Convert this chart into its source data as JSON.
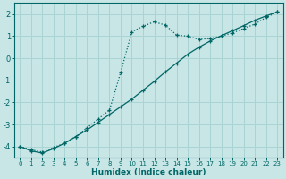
{
  "xlabel": "Humidex (Indice chaleur)",
  "bg_color": "#c8e6e6",
  "grid_color": "#aad4d4",
  "line_color": "#006666",
  "xlim": [
    -0.5,
    23.5
  ],
  "ylim": [
    -4.5,
    2.5
  ],
  "xticks": [
    0,
    1,
    2,
    3,
    4,
    5,
    6,
    7,
    8,
    9,
    10,
    11,
    12,
    13,
    14,
    15,
    16,
    17,
    18,
    19,
    20,
    21,
    22,
    23
  ],
  "yticks": [
    -4,
    -3,
    -2,
    -1,
    0,
    1,
    2
  ],
  "line1_x": [
    0,
    1,
    2,
    3,
    4,
    5,
    6,
    7,
    8,
    9,
    10,
    11,
    12,
    13,
    14,
    15,
    16,
    17,
    18,
    19,
    20,
    21,
    22,
    23
  ],
  "line1_y": [
    -4.0,
    -4.15,
    -4.25,
    -4.05,
    -3.85,
    -3.55,
    -3.15,
    -2.75,
    -2.35,
    -0.65,
    1.2,
    1.45,
    1.65,
    1.5,
    1.05,
    1.0,
    0.85,
    0.9,
    1.0,
    1.15,
    1.35,
    1.55,
    1.85,
    2.1
  ],
  "line2_x": [
    0,
    1,
    2,
    3,
    4,
    5,
    6,
    7,
    8,
    9,
    10,
    11,
    12,
    13,
    14,
    15,
    16,
    17,
    18,
    19,
    20,
    21,
    22,
    23
  ],
  "line2_y": [
    -4.0,
    -4.2,
    -4.3,
    -4.1,
    -3.85,
    -3.55,
    -3.25,
    -2.9,
    -2.55,
    -2.2,
    -1.85,
    -1.45,
    -1.05,
    -0.62,
    -0.22,
    0.18,
    0.5,
    0.78,
    1.02,
    1.25,
    1.48,
    1.72,
    1.92,
    2.1
  ]
}
